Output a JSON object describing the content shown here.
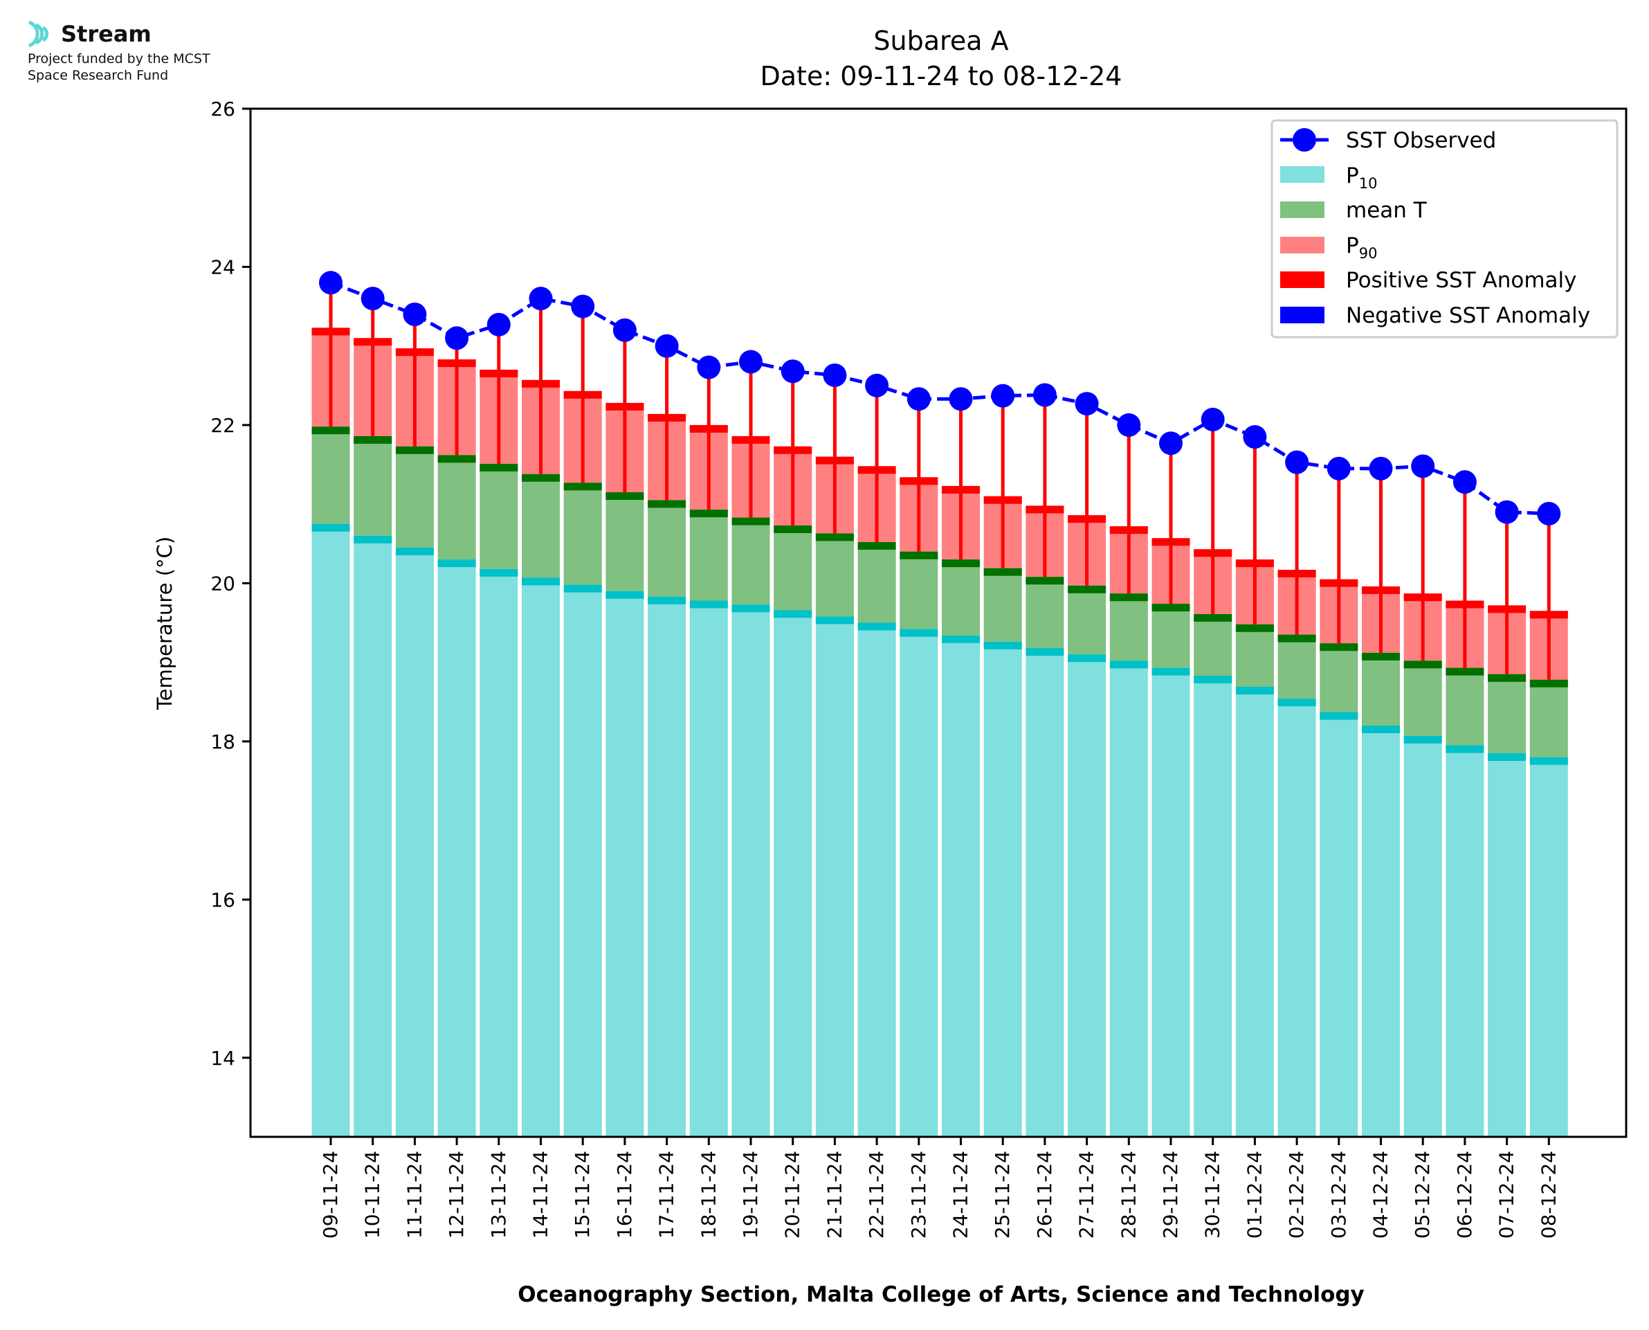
{
  "logo": {
    "name": "Stream",
    "line1": "Project funded by the MCST",
    "line2": "Space Research Fund"
  },
  "chart_data": {
    "type": "bar",
    "title_line1": "Subarea A",
    "title_line2": "Date: 09-11-24 to 08-12-24",
    "xlabel": "Oceanography Section, Malta College of Arts, Science and Technology",
    "ylabel": "Temperature (°C)",
    "ylim": [
      13,
      26
    ],
    "yticks": [
      14,
      16,
      18,
      20,
      22,
      24,
      26
    ],
    "grid": false,
    "legend_position": "top-right",
    "categories": [
      "09-11-24",
      "10-11-24",
      "11-11-24",
      "12-11-24",
      "13-11-24",
      "14-11-24",
      "15-11-24",
      "16-11-24",
      "17-11-24",
      "18-11-24",
      "19-11-24",
      "20-11-24",
      "21-11-24",
      "22-11-24",
      "23-11-24",
      "24-11-24",
      "25-11-24",
      "26-11-24",
      "27-11-24",
      "28-11-24",
      "29-11-24",
      "30-11-24",
      "01-12-24",
      "02-12-24",
      "03-12-24",
      "04-12-24",
      "05-12-24",
      "06-12-24",
      "07-12-24",
      "08-12-24"
    ],
    "series": [
      {
        "name": "SST Observed",
        "key": "sst",
        "color": "#0000ff",
        "values": [
          23.8,
          23.6,
          23.4,
          23.1,
          23.27,
          23.6,
          23.5,
          23.2,
          23.0,
          22.73,
          22.8,
          22.68,
          22.63,
          22.5,
          22.33,
          22.33,
          22.37,
          22.38,
          22.27,
          22.0,
          21.77,
          22.07,
          21.85,
          21.53,
          21.45,
          21.45,
          21.48,
          21.28,
          20.9,
          20.88
        ]
      },
      {
        "name": "P10",
        "key": "p10",
        "color": "#80dfdf",
        "edge_color": "#00c0c8",
        "values": [
          20.75,
          20.6,
          20.45,
          20.3,
          20.18,
          20.07,
          19.98,
          19.9,
          19.83,
          19.78,
          19.73,
          19.66,
          19.58,
          19.5,
          19.42,
          19.34,
          19.26,
          19.18,
          19.1,
          19.02,
          18.93,
          18.83,
          18.69,
          18.54,
          18.37,
          18.2,
          18.07,
          17.95,
          17.85,
          17.8
        ]
      },
      {
        "name": "mean T",
        "key": "mean",
        "color": "#80c080",
        "edge_color": "#007000",
        "values": [
          21.98,
          21.86,
          21.73,
          21.62,
          21.51,
          21.38,
          21.27,
          21.15,
          21.05,
          20.93,
          20.83,
          20.73,
          20.63,
          20.52,
          20.4,
          20.3,
          20.19,
          20.08,
          19.97,
          19.87,
          19.74,
          19.61,
          19.48,
          19.35,
          19.24,
          19.12,
          19.02,
          18.93,
          18.85,
          18.78
        ]
      },
      {
        "name": "P90",
        "key": "p90",
        "color": "#ff8080",
        "edge_color": "#ff0000",
        "values": [
          23.23,
          23.1,
          22.97,
          22.83,
          22.7,
          22.57,
          22.43,
          22.28,
          22.14,
          22.0,
          21.86,
          21.73,
          21.6,
          21.48,
          21.34,
          21.23,
          21.1,
          20.98,
          20.86,
          20.72,
          20.57,
          20.43,
          20.3,
          20.17,
          20.05,
          19.96,
          19.87,
          19.78,
          19.72,
          19.65
        ]
      }
    ],
    "legend": {
      "sst": "SST Observed",
      "p10_base": "P",
      "p10_sub": "10",
      "mean": "mean T",
      "p90_base": "P",
      "p90_sub": "90",
      "pos": "Positive SST Anomaly",
      "neg": "Negative SST Anomaly"
    },
    "anomaly_colors": {
      "positive": "#ff0000",
      "negative": "#0000ff"
    }
  }
}
